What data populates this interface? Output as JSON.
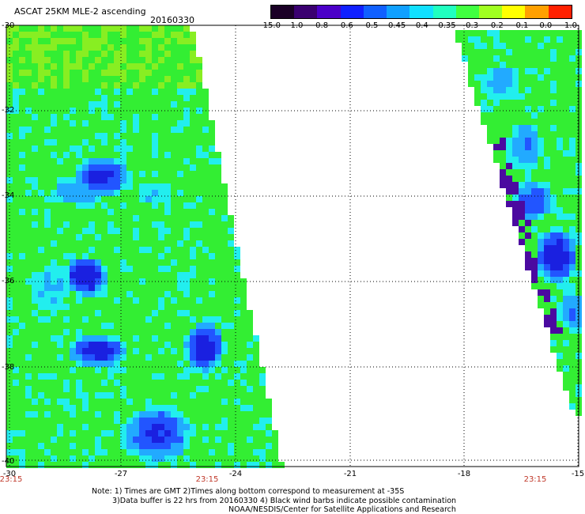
{
  "header": {
    "title": "ASCAT 25KM MLE-2 ascending",
    "date": "20160330"
  },
  "colorbar": {
    "labels": [
      "-15.0",
      "-1.0",
      "-0.8",
      "-0.6",
      "-0.5",
      "-0.45",
      "-0.4",
      "-0.35",
      "-0.3",
      "-0.2",
      "-0.1",
      "0.0",
      "1.0"
    ],
    "colors": [
      "#1a0026",
      "#3a0070",
      "#4b00c8",
      "#1020ff",
      "#1060ff",
      "#10a0ff",
      "#10e0ff",
      "#20ffc0",
      "#40ff40",
      "#a0ff20",
      "#ffff00",
      "#ffa000",
      "#ff2000"
    ]
  },
  "map": {
    "lat_labels": [
      "-30",
      "-32",
      "-34",
      "-36",
      "-38",
      "-40"
    ],
    "lon_labels": [
      "-30",
      "-27",
      "-24",
      "-21",
      "-18",
      "-15"
    ],
    "time_labels": [
      "23:15",
      "23:15",
      "23:15"
    ],
    "palette": {
      "green": "#33ee33",
      "lime": "#88ee22",
      "cyan": "#22eeee",
      "lightblue": "#22aaff",
      "blue": "#2255ff",
      "darkblue": "#1a20e0",
      "purple": "#4b0aa0"
    }
  },
  "notes": {
    "line1": "Note: 1) Times are GMT 2)Times along bottom correspond to measurement at -35S",
    "line2": "3)Data buffer is 22 hrs from 20160330 4) Black wind barbs indicate possible contamination",
    "line3": "NOAA/NESDIS/Center for Satellite Applications and Research"
  }
}
